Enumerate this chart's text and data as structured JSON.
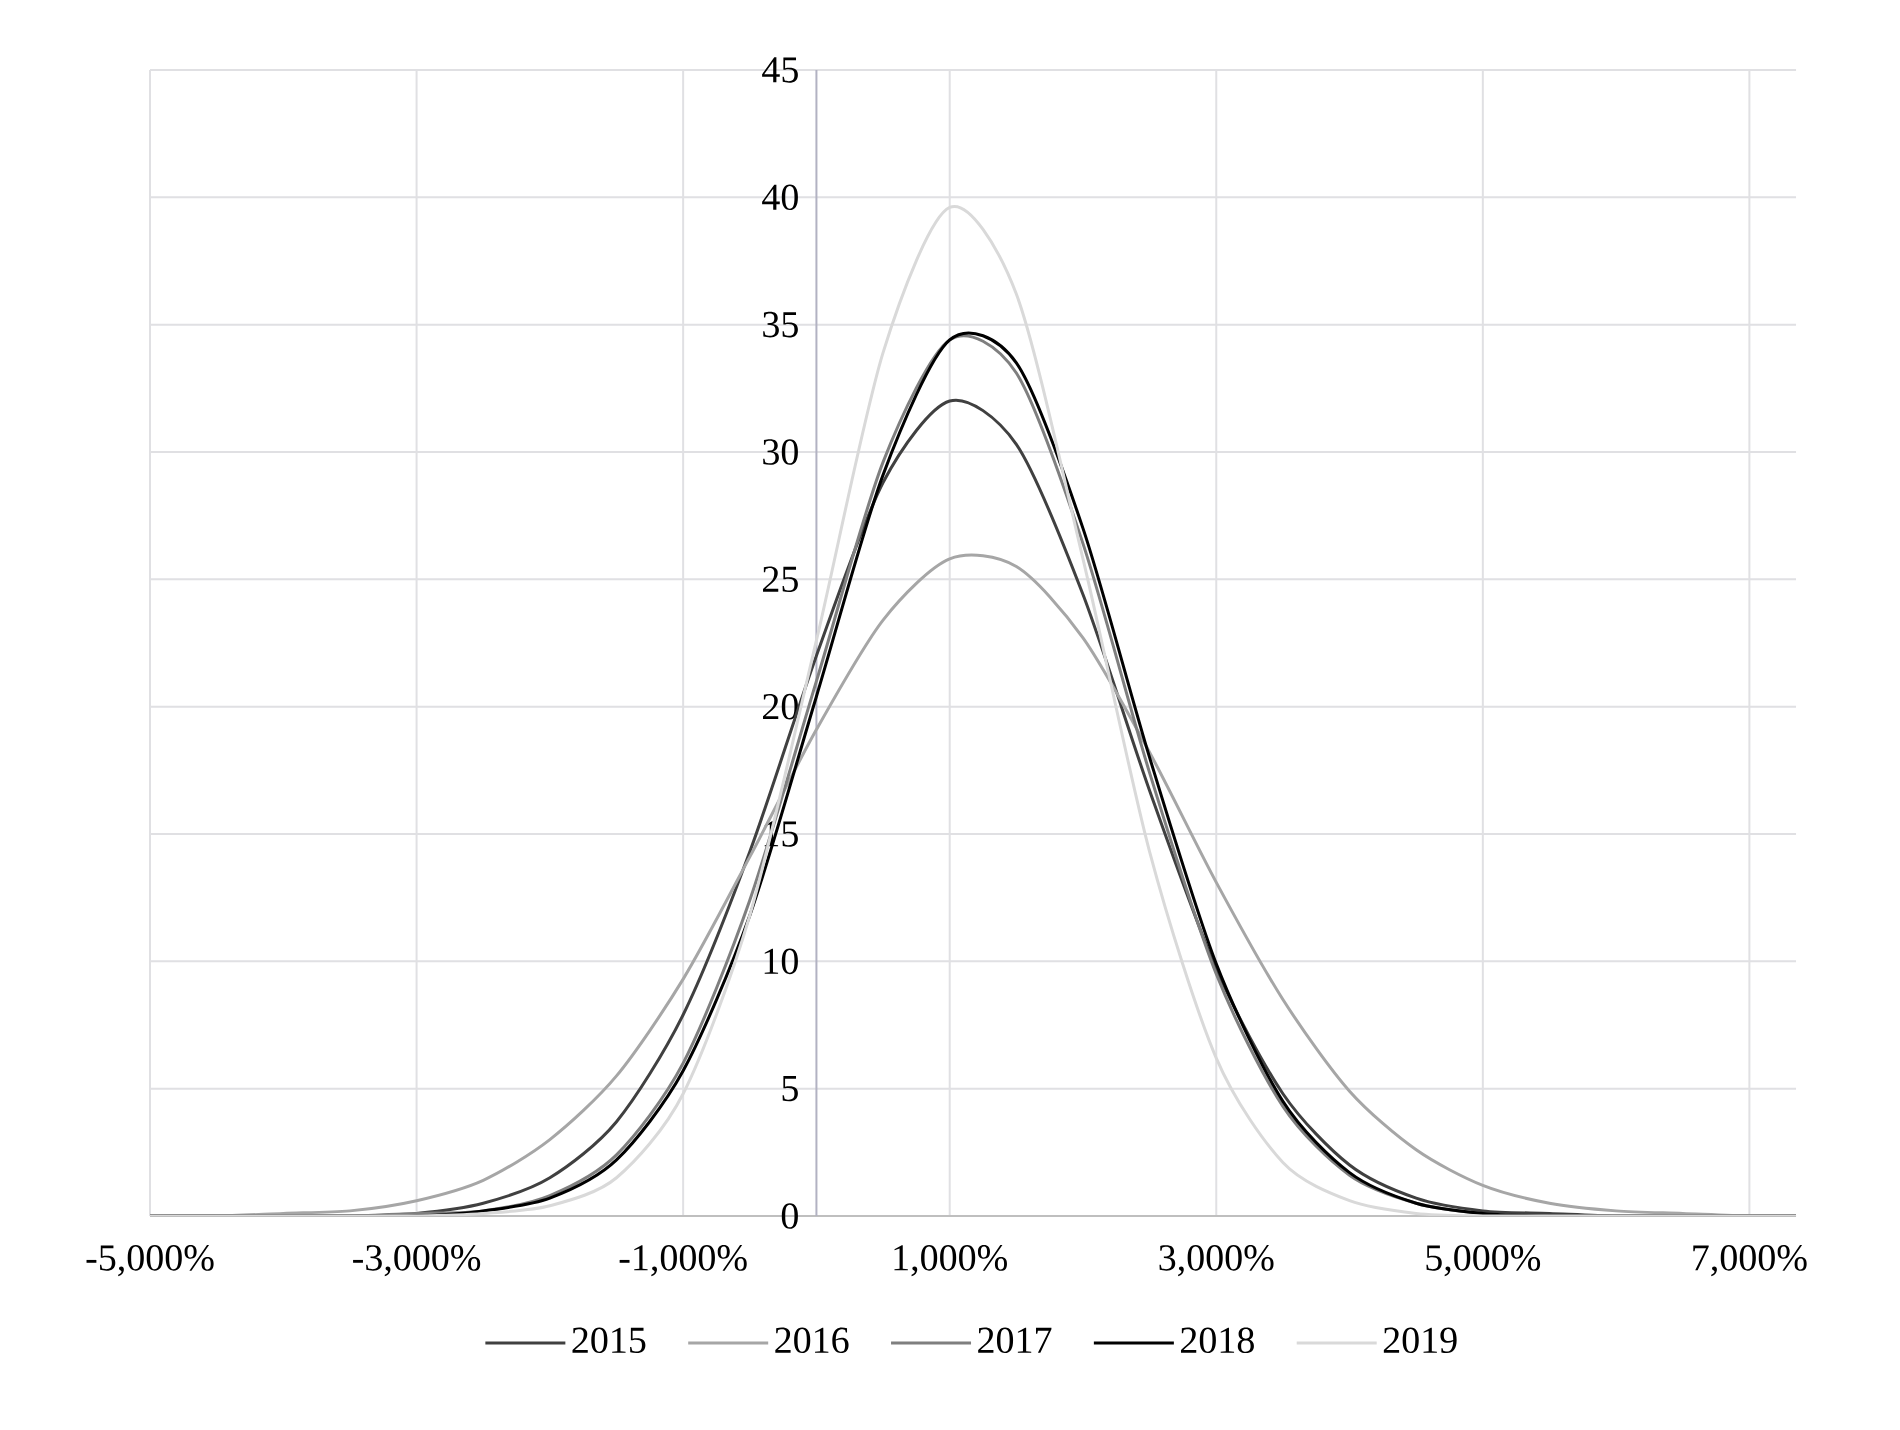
{
  "chart_data": {
    "type": "line",
    "x": [
      -5000,
      -4500,
      -4000,
      -3500,
      -3000,
      -2500,
      -2000,
      -1500,
      -1000,
      -500,
      0,
      500,
      1000,
      1500,
      2000,
      2500,
      3000,
      3500,
      4000,
      4500,
      5000,
      5500,
      6000,
      6500,
      7000,
      7350
    ],
    "series": [
      {
        "name": "2015",
        "color": "#404040",
        "values": [
          0,
          0,
          0,
          0,
          0.1,
          0.5,
          1.5,
          3.7,
          7.9,
          14.3,
          22.0,
          28.8,
          32.0,
          30.3,
          24.4,
          16.7,
          9.7,
          4.8,
          2.0,
          0.7,
          0.2,
          0.1,
          0,
          0,
          0,
          0
        ]
      },
      {
        "name": "2016",
        "color": "#a6a6a6",
        "values": [
          0,
          0,
          0.1,
          0.2,
          0.6,
          1.4,
          3.0,
          5.5,
          9.3,
          14.1,
          19.1,
          23.4,
          25.8,
          25.5,
          22.7,
          18.2,
          13.1,
          8.5,
          4.9,
          2.6,
          1.2,
          0.5,
          0.2,
          0.1,
          0,
          0
        ]
      },
      {
        "name": "2017",
        "color": "#7f7f7f",
        "values": [
          0,
          0,
          0,
          0,
          0.1,
          0.2,
          0.8,
          2.4,
          6.0,
          12.4,
          21.0,
          29.6,
          34.4,
          33.1,
          26.4,
          17.4,
          9.5,
          4.3,
          1.6,
          0.5,
          0.1,
          0,
          0,
          0,
          0,
          0
        ]
      },
      {
        "name": "2018",
        "color": "#000000",
        "values": [
          0,
          0,
          0,
          0,
          0,
          0.2,
          0.7,
          2.2,
          5.7,
          11.8,
          20.4,
          29.1,
          34.4,
          33.5,
          27.0,
          18.0,
          9.9,
          4.5,
          1.7,
          0.5,
          0.1,
          0,
          0,
          0,
          0,
          0
        ]
      },
      {
        "name": "2019",
        "color": "#d9d9d9",
        "values": [
          0,
          0,
          0,
          0,
          0,
          0.1,
          0.4,
          1.5,
          4.8,
          11.8,
          22.6,
          33.9,
          39.6,
          36.2,
          25.8,
          14.3,
          6.2,
          2.1,
          0.6,
          0.1,
          0,
          0,
          0,
          0,
          0,
          0
        ]
      }
    ],
    "xlim": [
      -5000,
      7350
    ],
    "ylim": [
      0,
      45
    ],
    "xticks": [
      {
        "value": -5000,
        "label": "-5,000%"
      },
      {
        "value": -3000,
        "label": "-3,000%"
      },
      {
        "value": -1000,
        "label": "-1,000%"
      },
      {
        "value": 1000,
        "label": "1,000%"
      },
      {
        "value": 3000,
        "label": "3,000%"
      },
      {
        "value": 5000,
        "label": "5,000%"
      },
      {
        "value": 7000,
        "label": "7,000%"
      }
    ],
    "yticks": [
      0,
      5,
      10,
      15,
      20,
      25,
      30,
      35,
      40,
      45
    ],
    "grid": true,
    "legend": "bottom"
  }
}
